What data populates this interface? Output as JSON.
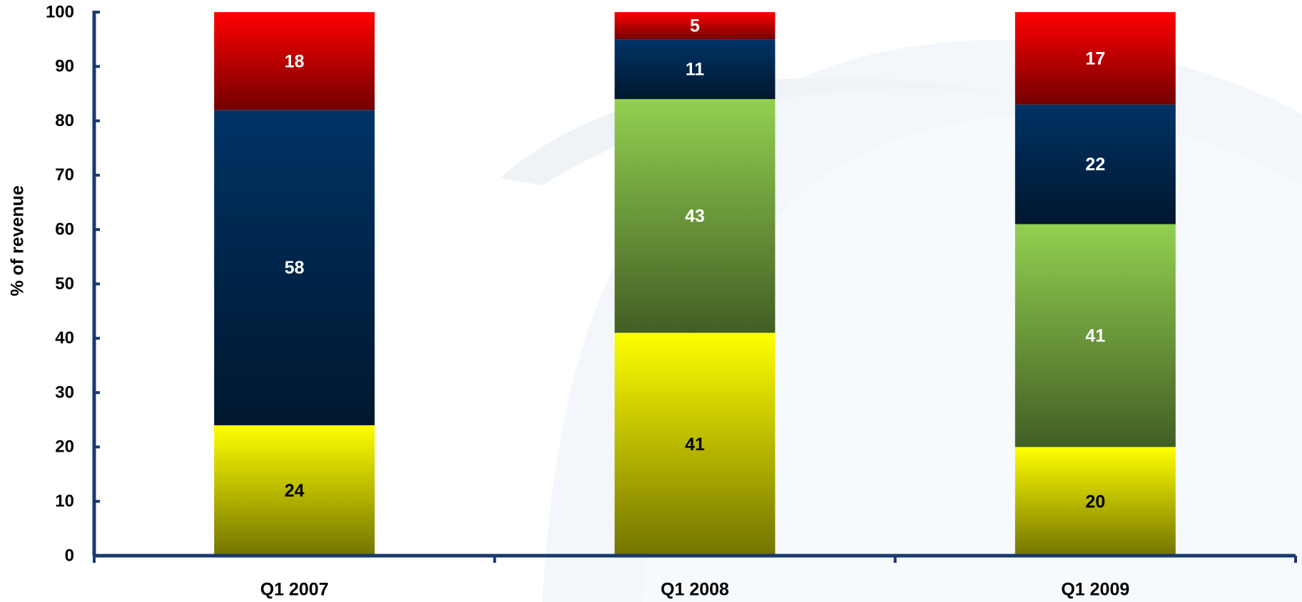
{
  "chart_data": {
    "type": "stacked_bar",
    "y_label": "% of revenue",
    "categories": [
      "Q1 2007",
      "Q1 2008",
      "Q1 2009"
    ],
    "series": [
      {
        "color": "#ffff00",
        "label_color": "#000000",
        "values": [
          24,
          41,
          20
        ]
      },
      {
        "color": "#92d050",
        "label_color": "#ffffff",
        "values": [
          null,
          43,
          41
        ]
      },
      {
        "color": "#003366",
        "label_color": "#ffffff",
        "values": [
          58,
          11,
          22
        ]
      },
      {
        "color": "#ff0000",
        "label_color": "#ffffff",
        "values": [
          18,
          5,
          17
        ]
      }
    ],
    "ylim": [
      0,
      100
    ],
    "yticks": [
      0,
      10,
      20,
      30,
      40,
      50,
      60,
      70,
      80,
      90,
      100
    ],
    "axis_color": "#1a3a6e"
  }
}
